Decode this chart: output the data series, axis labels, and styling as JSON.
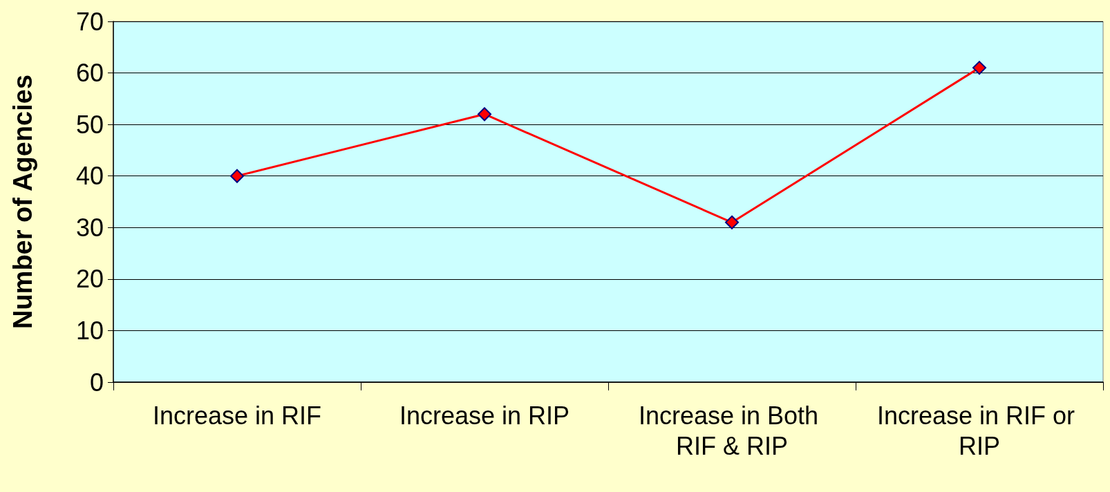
{
  "chart_data": {
    "type": "line",
    "ylabel": "Number of Agencies",
    "categories": [
      "Increase in RIF",
      "Increase in RIP",
      "Increase in Both RIF & RIP",
      "Increase in RIF or RIP"
    ],
    "series": [
      {
        "color": "#ff0000",
        "values": [
          40,
          52,
          31,
          61
        ]
      }
    ],
    "ylim": [
      0,
      70
    ],
    "yticks": [
      0,
      10,
      20,
      30,
      40,
      50,
      60,
      70
    ],
    "grid": "y",
    "marker": "diamond",
    "line_style": "solid"
  }
}
